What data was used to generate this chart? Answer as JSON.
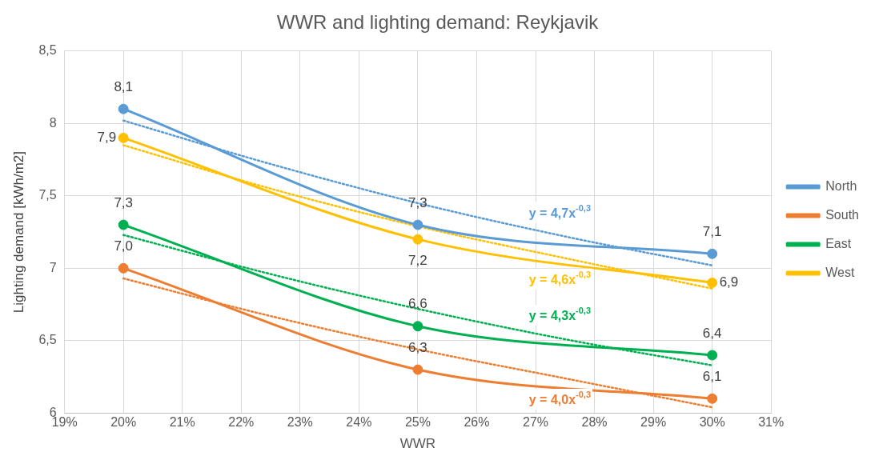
{
  "chart_data": {
    "type": "line",
    "title": "WWR and lighting demand: Reykjavik",
    "xlabel": "WWR",
    "ylabel": "Lighting demand [kWh/m2]",
    "x": [
      20,
      25,
      30
    ],
    "series": [
      {
        "name": "North",
        "color": "#5b9bd5",
        "values": [
          8.1,
          7.3,
          7.1
        ],
        "value_labels": [
          "8,1",
          "7,3",
          "7,1"
        ]
      },
      {
        "name": "South",
        "color": "#ed7d31",
        "values": [
          7.0,
          6.3,
          6.1
        ],
        "value_labels": [
          "7,0",
          "6,3",
          "6,1"
        ]
      },
      {
        "name": "East",
        "color": "#00b050",
        "values": [
          7.3,
          6.6,
          6.4
        ],
        "value_labels": [
          "7,3",
          "6,6",
          "6,4"
        ]
      },
      {
        "name": "West",
        "color": "#ffc000",
        "values": [
          7.9,
          7.2,
          6.9
        ],
        "value_labels": [
          "7,9",
          "7,2",
          "6,9"
        ]
      },
      {
        "color": "#5b9bd5",
        "x": [
          20,
          22.5,
          25,
          27.5,
          30
        ],
        "values": [
          8.02,
          7.72,
          7.45,
          7.22,
          7.02
        ],
        "line_style": "dotted",
        "marker": "none"
      },
      {
        "color": "#ed7d31",
        "x": [
          20,
          22.5,
          25,
          27.5,
          30
        ],
        "values": [
          6.93,
          6.67,
          6.44,
          6.24,
          6.04
        ],
        "line_style": "dotted",
        "marker": "none"
      },
      {
        "color": "#00b050",
        "x": [
          20,
          22.5,
          25,
          27.5,
          30
        ],
        "values": [
          7.23,
          6.96,
          6.72,
          6.51,
          6.33
        ],
        "line_style": "dotted",
        "marker": "none"
      },
      {
        "color": "#ffc000",
        "x": [
          20,
          22.5,
          25,
          27.5,
          30
        ],
        "values": [
          7.85,
          7.55,
          7.29,
          7.07,
          6.86
        ],
        "line_style": "dotted",
        "marker": "none"
      }
    ],
    "annotations": [
      "y = 4,7x$^{-0,3}$",
      "y = 4,0x$^{-0,3}$",
      "y = 4,3x$^{-0,3}$",
      "y = 4,6x$^{-0,3}$"
    ],
    "xlim": [
      19,
      31
    ],
    "xticks": [
      {
        "value": 19,
        "label": "19%"
      },
      {
        "value": 20,
        "label": "20%"
      },
      {
        "value": 21,
        "label": "21%"
      },
      {
        "value": 22,
        "label": "22%"
      },
      {
        "value": 23,
        "label": "23%"
      },
      {
        "value": 24,
        "label": "24%"
      },
      {
        "value": 25,
        "label": "25%"
      },
      {
        "value": 26,
        "label": "26%"
      },
      {
        "value": 27,
        "label": "27%"
      },
      {
        "value": 28,
        "label": "28%"
      },
      {
        "value": 29,
        "label": "29%"
      },
      {
        "value": 30,
        "label": "30%"
      },
      {
        "value": 31,
        "label": "31%"
      }
    ],
    "ylim": [
      6,
      8.5
    ],
    "yticks": [
      6,
      {
        "value": 6.5,
        "label": "6,5"
      },
      7,
      {
        "value": 7.5,
        "label": "7,5"
      },
      8,
      {
        "value": 8.5,
        "label": "8,5"
      }
    ],
    "grid": true,
    "legend": "right",
    "marker": "circle",
    "line_style": "solid"
  }
}
